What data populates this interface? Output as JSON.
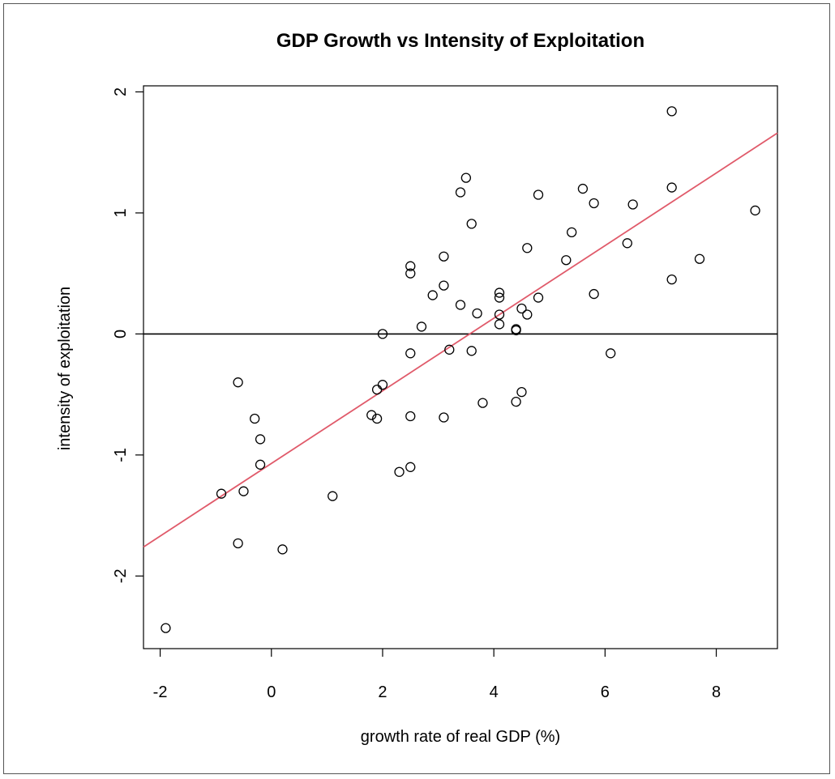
{
  "chart_data": {
    "type": "scatter",
    "title": "GDP Growth vs Intensity of Exploitation",
    "xlabel": "growth rate of real GDP (%)",
    "ylabel": "intensity of exploitation",
    "xlim": [
      -2.3,
      9.1
    ],
    "ylim": [
      -2.6,
      2.05
    ],
    "xticks": [
      -2,
      0,
      2,
      4,
      6,
      8
    ],
    "yticks": [
      -2,
      -1,
      0,
      1,
      2
    ],
    "xtick_labels": [
      "-2",
      "0",
      "2",
      "4",
      "6",
      "8"
    ],
    "ytick_labels": [
      "-2",
      "-1",
      "0",
      "1",
      "2"
    ],
    "grid": false,
    "hline": {
      "y": 0,
      "color": "#000000"
    },
    "regression_line": {
      "intercept": -1.07,
      "slope": 0.3,
      "color": "#e05a6a"
    },
    "marker_color": "#000000",
    "series": [
      {
        "points": [
          {
            "x": -1.9,
            "y": -2.43
          },
          {
            "x": -0.9,
            "y": -1.32
          },
          {
            "x": -0.6,
            "y": -1.73
          },
          {
            "x": -0.6,
            "y": -0.4
          },
          {
            "x": -0.5,
            "y": -1.3
          },
          {
            "x": -0.3,
            "y": -0.7
          },
          {
            "x": -0.2,
            "y": -0.87
          },
          {
            "x": -0.2,
            "y": -1.08
          },
          {
            "x": 0.2,
            "y": -1.78
          },
          {
            "x": 1.1,
            "y": -1.34
          },
          {
            "x": 1.8,
            "y": -0.67
          },
          {
            "x": 1.9,
            "y": -0.7
          },
          {
            "x": 1.9,
            "y": -0.46
          },
          {
            "x": 2.0,
            "y": -0.42
          },
          {
            "x": 2.0,
            "y": 0.0
          },
          {
            "x": 2.3,
            "y": -1.14
          },
          {
            "x": 2.5,
            "y": -1.1
          },
          {
            "x": 2.5,
            "y": -0.68
          },
          {
            "x": 2.5,
            "y": -0.16
          },
          {
            "x": 2.5,
            "y": 0.5
          },
          {
            "x": 2.5,
            "y": 0.56
          },
          {
            "x": 2.7,
            "y": 0.06
          },
          {
            "x": 2.9,
            "y": 0.32
          },
          {
            "x": 3.1,
            "y": 0.4
          },
          {
            "x": 3.1,
            "y": 0.64
          },
          {
            "x": 3.1,
            "y": -0.69
          },
          {
            "x": 3.2,
            "y": -0.13
          },
          {
            "x": 3.4,
            "y": 0.24
          },
          {
            "x": 3.4,
            "y": 1.17
          },
          {
            "x": 3.5,
            "y": 1.29
          },
          {
            "x": 3.6,
            "y": -0.14
          },
          {
            "x": 3.6,
            "y": 0.91
          },
          {
            "x": 3.7,
            "y": 0.17
          },
          {
            "x": 3.8,
            "y": -0.57
          },
          {
            "x": 4.1,
            "y": 0.3
          },
          {
            "x": 4.1,
            "y": 0.34
          },
          {
            "x": 4.1,
            "y": 0.08
          },
          {
            "x": 4.1,
            "y": 0.16
          },
          {
            "x": 4.4,
            "y": 0.04
          },
          {
            "x": 4.4,
            "y": 0.03
          },
          {
            "x": 4.4,
            "y": -0.56
          },
          {
            "x": 4.5,
            "y": -0.48
          },
          {
            "x": 4.5,
            "y": 0.21
          },
          {
            "x": 4.6,
            "y": 0.16
          },
          {
            "x": 4.6,
            "y": 0.71
          },
          {
            "x": 4.8,
            "y": 1.15
          },
          {
            "x": 4.8,
            "y": 0.3
          },
          {
            "x": 5.3,
            "y": 0.61
          },
          {
            "x": 5.4,
            "y": 0.84
          },
          {
            "x": 5.6,
            "y": 1.2
          },
          {
            "x": 5.8,
            "y": 1.08
          },
          {
            "x": 5.8,
            "y": 0.33
          },
          {
            "x": 6.1,
            "y": -0.16
          },
          {
            "x": 6.4,
            "y": 0.75
          },
          {
            "x": 6.5,
            "y": 1.07
          },
          {
            "x": 7.2,
            "y": 1.84
          },
          {
            "x": 7.2,
            "y": 1.21
          },
          {
            "x": 7.2,
            "y": 0.45
          },
          {
            "x": 7.7,
            "y": 0.62
          },
          {
            "x": 8.7,
            "y": 1.02
          }
        ]
      }
    ]
  }
}
